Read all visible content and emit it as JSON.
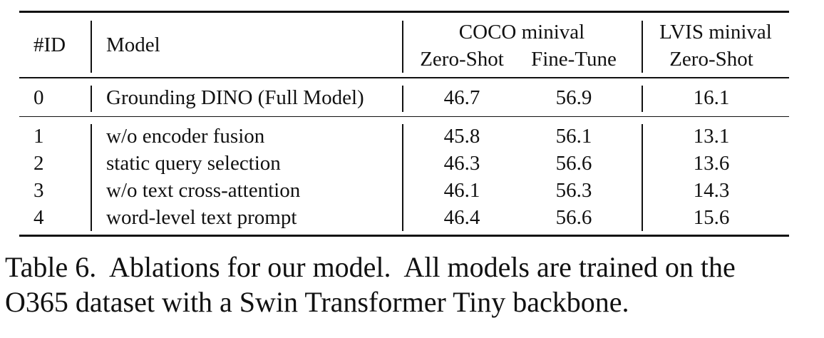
{
  "table": {
    "header": {
      "id": "#ID",
      "model": "Model",
      "coco_group": "COCO minival",
      "lvis_group": "LVIS minival",
      "coco_zero_shot": "Zero-Shot",
      "coco_fine_tune": "Fine-Tune",
      "lvis_zero_shot": "Zero-Shot"
    },
    "rows": [
      {
        "id": "0",
        "model": "Grounding DINO (Full Model)",
        "coco_zero_shot": "46.7",
        "coco_fine_tune": "56.9",
        "lvis_zero_shot": "16.1"
      },
      {
        "id": "1",
        "model": "w/o encoder fusion",
        "coco_zero_shot": "45.8",
        "coco_fine_tune": "56.1",
        "lvis_zero_shot": "13.1"
      },
      {
        "id": "2",
        "model": "static query selection",
        "coco_zero_shot": "46.3",
        "coco_fine_tune": "56.6",
        "lvis_zero_shot": "13.6"
      },
      {
        "id": "3",
        "model": "w/o text cross-attention",
        "coco_zero_shot": "46.1",
        "coco_fine_tune": "56.3",
        "lvis_zero_shot": "14.3"
      },
      {
        "id": "4",
        "model": "word-level text prompt",
        "coco_zero_shot": "46.4",
        "coco_fine_tune": "56.6",
        "lvis_zero_shot": "15.6"
      }
    ]
  },
  "caption": {
    "line1": "Table 6.  Ablations for our model.  All models are trained on the",
    "line2": "O365 dataset with a Swin Transformer Tiny backbone."
  }
}
